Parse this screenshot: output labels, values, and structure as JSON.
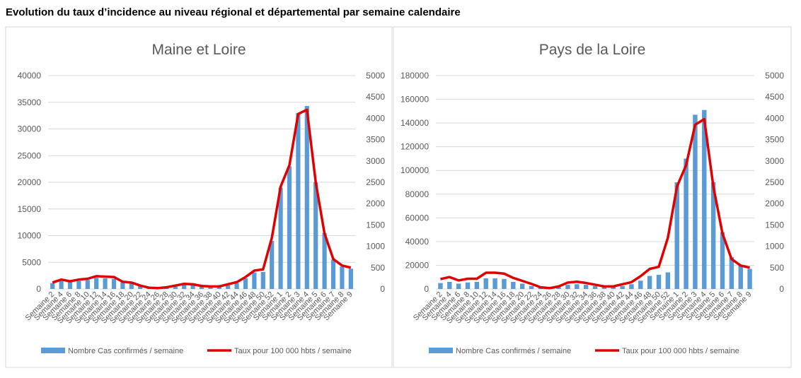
{
  "title": "Evolution du taux d’incidence au niveau régional et départemental par semaine calendaire",
  "chart_data": [
    {
      "type": "combo",
      "title": "Maine et Loire",
      "categories": [
        "Semaine 2",
        "Semaine 4",
        "Semaine 6",
        "Semaine 8",
        "Semaine 10",
        "Semaine 12",
        "Semaine 14",
        "Semaine 16",
        "Semaine 18",
        "Semaine 20",
        "Semaine 22",
        "Semaine 24",
        "Semaine 26",
        "Semaine 28",
        "Semaine 30",
        "Semaine 32",
        "Semaine 34",
        "Semaine 36",
        "Semaine 38",
        "Semaine 40",
        "Semaine 42",
        "Semaine 44",
        "Semaine 46",
        "Semaine 48",
        "Semaine 50",
        "Semaine 52",
        "Semaine 1",
        "Semaine 2",
        "Semaine 3",
        "Semaine 4",
        "Semaine 5",
        "Semaine 6",
        "Semaine 7",
        "Semaine 8",
        "Semaine 9"
      ],
      "series": [
        {
          "name": "Nombre Cas confirmés / semaine",
          "type": "bar",
          "color": "#5b9bd5",
          "axis": "y",
          "values": [
            1100,
            1500,
            1300,
            1500,
            1700,
            2100,
            2000,
            1900,
            1300,
            1000,
            600,
            200,
            150,
            300,
            600,
            900,
            800,
            500,
            400,
            400,
            700,
            1100,
            2000,
            3100,
            3200,
            9000,
            19000,
            23000,
            33000,
            34300,
            20000,
            10500,
            5500,
            4200,
            3800
          ]
        },
        {
          "name": "Taux pour 100 000 hbts / semaine",
          "type": "line",
          "color": "#e00000",
          "axis": "y2",
          "values": [
            150,
            220,
            180,
            220,
            240,
            300,
            290,
            280,
            170,
            150,
            80,
            30,
            20,
            40,
            80,
            120,
            110,
            70,
            60,
            60,
            110,
            160,
            280,
            430,
            460,
            1200,
            2400,
            2900,
            4100,
            4200,
            2500,
            1300,
            700,
            550,
            500
          ]
        }
      ],
      "ylim": [
        0,
        40000
      ],
      "yticks": [
        0,
        5000,
        10000,
        15000,
        20000,
        25000,
        30000,
        35000,
        40000
      ],
      "y2lim": [
        0,
        5000
      ],
      "y2ticks": [
        0,
        500,
        1000,
        1500,
        2000,
        2500,
        3000,
        3500,
        4000,
        4500,
        5000
      ],
      "grid": true,
      "legend": "bottom"
    },
    {
      "type": "combo",
      "title": "Pays de la Loire",
      "categories": [
        "Semaine 2",
        "Semaine 4",
        "Semaine 6",
        "Semaine 8",
        "Semaine 10",
        "Semaine 12",
        "Semaine 14",
        "Semaine 16",
        "Semaine 18",
        "Semaine 20",
        "Semaine 22",
        "Semaine 24",
        "Semaine 26",
        "Semaine 28",
        "Semaine 30",
        "Semaine 32",
        "Semaine 34",
        "Semaine 36",
        "Semaine 38",
        "Semaine 40",
        "Semaine 42",
        "Semaine 44",
        "Semaine 46",
        "Semaine 48",
        "Semaine 50",
        "Semaine 52",
        "Semaine 1",
        "Semaine 2",
        "Semaine 3",
        "Semaine 4",
        "Semaine 5",
        "Semaine 6",
        "Semaine 7",
        "Semaine 8",
        "Semaine 9"
      ],
      "series": [
        {
          "name": "Nombre Cas confirmés / semaine",
          "type": "bar",
          "color": "#5b9bd5",
          "axis": "y",
          "values": [
            5000,
            6000,
            4500,
            5500,
            6000,
            9000,
            9000,
            8500,
            6000,
            4500,
            2500,
            800,
            500,
            1500,
            3500,
            4000,
            3500,
            2500,
            1500,
            1500,
            2500,
            4000,
            7000,
            11000,
            12000,
            14000,
            90000,
            110000,
            147000,
            151000,
            90000,
            48000,
            27000,
            20000,
            17000
          ]
        },
        {
          "name": "Taux pour 100 000 hbts / semaine",
          "type": "line",
          "color": "#e00000",
          "axis": "y2",
          "values": [
            230,
            280,
            200,
            240,
            240,
            380,
            380,
            360,
            260,
            190,
            120,
            40,
            20,
            60,
            150,
            170,
            140,
            100,
            60,
            60,
            110,
            160,
            300,
            470,
            520,
            1200,
            2400,
            2900,
            3850,
            3980,
            2400,
            1300,
            700,
            550,
            500
          ]
        }
      ],
      "ylim": [
        0,
        180000
      ],
      "yticks": [
        0,
        20000,
        40000,
        60000,
        80000,
        100000,
        120000,
        140000,
        160000,
        180000
      ],
      "y2lim": [
        0,
        5000
      ],
      "y2ticks": [
        0,
        500,
        1000,
        1500,
        2000,
        2500,
        3000,
        3500,
        4000,
        4500,
        5000
      ],
      "grid": true,
      "legend": "bottom"
    }
  ]
}
